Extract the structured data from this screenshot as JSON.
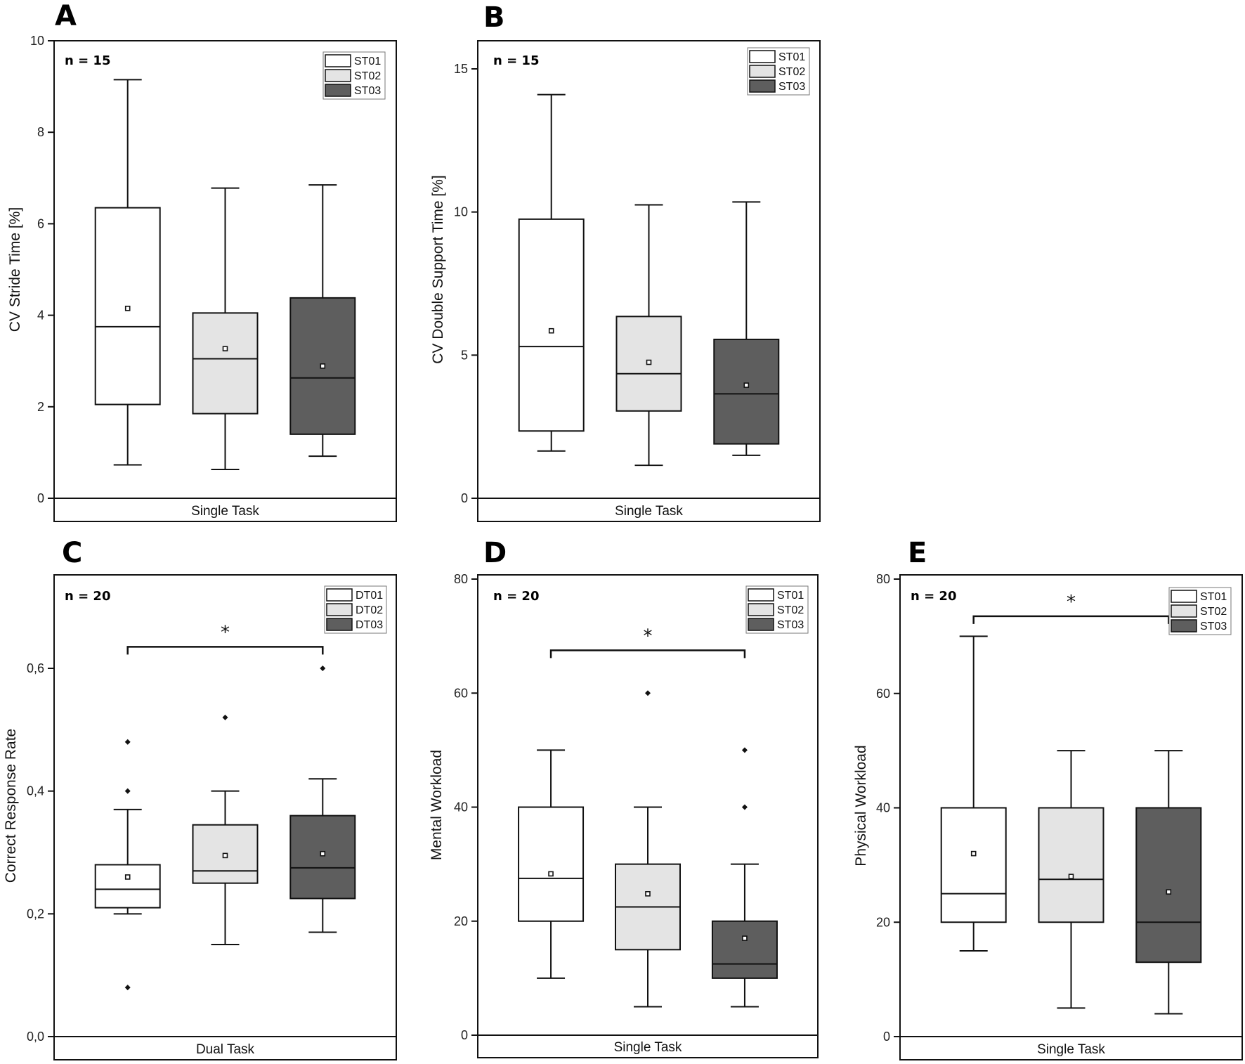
{
  "chart_data": [
    {
      "type": "box",
      "panel": "A",
      "n_label": "n = 15",
      "ylabel": "CV Stride Time [%]",
      "xlabel": "Single Task",
      "ylim": [
        0,
        10
      ],
      "yticks": [
        0,
        2,
        4,
        6,
        8,
        10
      ],
      "ytick_labels": [
        "0",
        "2",
        "4",
        "6",
        "8",
        "10"
      ],
      "legend": [
        "ST01",
        "ST02",
        "ST03"
      ],
      "colors": [
        "#ffffff",
        "#e4e4e4",
        "#5e5e5e"
      ],
      "series": [
        {
          "name": "ST01",
          "whisker_low": 0.73,
          "q1": 2.05,
          "median": 3.75,
          "q3": 6.35,
          "whisker_high": 9.15,
          "mean": 4.15,
          "outliers": []
        },
        {
          "name": "ST02",
          "whisker_low": 0.63,
          "q1": 1.85,
          "median": 3.05,
          "q3": 4.05,
          "whisker_high": 6.78,
          "mean": 3.27,
          "outliers": []
        },
        {
          "name": "ST03",
          "whisker_low": 0.92,
          "q1": 1.4,
          "median": 2.63,
          "q3": 4.38,
          "whisker_high": 6.85,
          "mean": 2.89,
          "outliers": []
        }
      ],
      "significance": null
    },
    {
      "type": "box",
      "panel": "B",
      "n_label": "n = 15",
      "ylabel": "CV Double Support Time [%]",
      "xlabel": "Single Task",
      "ylim": [
        0,
        16
      ],
      "yticks": [
        0,
        5,
        10,
        15
      ],
      "ytick_labels": [
        "0",
        "5",
        "10",
        "15"
      ],
      "legend": [
        "ST01",
        "ST02",
        "ST03"
      ],
      "colors": [
        "#ffffff",
        "#e4e4e4",
        "#5e5e5e"
      ],
      "series": [
        {
          "name": "ST01",
          "whisker_low": 1.65,
          "q1": 2.35,
          "median": 5.3,
          "q3": 9.75,
          "whisker_high": 14.1,
          "mean": 5.85,
          "outliers": []
        },
        {
          "name": "ST02",
          "whisker_low": 1.15,
          "q1": 3.05,
          "median": 4.35,
          "q3": 6.35,
          "whisker_high": 10.25,
          "mean": 4.75,
          "outliers": []
        },
        {
          "name": "ST03",
          "whisker_low": 1.5,
          "q1": 1.9,
          "median": 3.65,
          "q3": 5.55,
          "whisker_high": 10.35,
          "mean": 3.95,
          "outliers": []
        }
      ],
      "significance": null
    },
    {
      "type": "box",
      "panel": "C",
      "n_label": "n = 20",
      "ylabel": "Correct Response Rate",
      "xlabel": "Dual Task",
      "ylim": [
        0,
        0.75
      ],
      "yticks": [
        0,
        0.2,
        0.4,
        0.6
      ],
      "ytick_labels": [
        "0,0",
        "0,2",
        "0,4",
        "0,6"
      ],
      "legend": [
        "DT01",
        "DT02",
        "DT03"
      ],
      "colors": [
        "#ffffff",
        "#e4e4e4",
        "#5e5e5e"
      ],
      "series": [
        {
          "name": "DT01",
          "whisker_low": 0.2,
          "q1": 0.21,
          "median": 0.24,
          "q3": 0.28,
          "whisker_high": 0.37,
          "mean": 0.26,
          "outliers": [
            0.48,
            0.4,
            0.08
          ]
        },
        {
          "name": "DT02",
          "whisker_low": 0.15,
          "q1": 0.25,
          "median": 0.27,
          "q3": 0.345,
          "whisker_high": 0.4,
          "mean": 0.295,
          "outliers": [
            0.52
          ]
        },
        {
          "name": "DT03",
          "whisker_low": 0.17,
          "q1": 0.225,
          "median": 0.275,
          "q3": 0.36,
          "whisker_high": 0.42,
          "mean": 0.298,
          "outliers": [
            0.6
          ]
        }
      ],
      "significance": {
        "from": 0,
        "to": 2,
        "level": 0.635,
        "label": "*"
      }
    },
    {
      "type": "box",
      "panel": "D",
      "n_label": "n = 20",
      "ylabel": "Mental Workload",
      "xlabel": "Single Task",
      "ylim": [
        0,
        80
      ],
      "yticks": [
        0,
        20,
        40,
        60,
        80
      ],
      "ytick_labels": [
        "0",
        "20",
        "40",
        "60",
        "80"
      ],
      "legend": [
        "ST01",
        "ST02",
        "ST03"
      ],
      "colors": [
        "#ffffff",
        "#e4e4e4",
        "#5e5e5e"
      ],
      "series": [
        {
          "name": "ST01",
          "whisker_low": 10,
          "q1": 20,
          "median": 27.5,
          "q3": 40,
          "whisker_high": 50,
          "mean": 28.3,
          "outliers": []
        },
        {
          "name": "ST02",
          "whisker_low": 5,
          "q1": 15,
          "median": 22.5,
          "q3": 30,
          "whisker_high": 40,
          "mean": 24.8,
          "outliers": [
            60
          ]
        },
        {
          "name": "ST03",
          "whisker_low": 5,
          "q1": 10,
          "median": 12.5,
          "q3": 20,
          "whisker_high": 30,
          "mean": 17,
          "outliers": [
            50,
            40
          ]
        }
      ],
      "significance": {
        "from": 0,
        "to": 2,
        "level": 67.5,
        "label": "*"
      }
    },
    {
      "type": "box",
      "panel": "E",
      "n_label": "n = 20",
      "ylabel": "Physical Workload",
      "xlabel": "Single Task",
      "ylim": [
        0,
        80
      ],
      "yticks": [
        0,
        20,
        40,
        60,
        80
      ],
      "ytick_labels": [
        "0",
        "20",
        "40",
        "60",
        "80"
      ],
      "legend": [
        "ST01",
        "ST02",
        "ST03"
      ],
      "colors": [
        "#ffffff",
        "#e4e4e4",
        "#5e5e5e"
      ],
      "series": [
        {
          "name": "ST01",
          "whisker_low": 15,
          "q1": 20,
          "median": 25,
          "q3": 40,
          "whisker_high": 70,
          "mean": 32,
          "outliers": []
        },
        {
          "name": "ST02",
          "whisker_low": 5,
          "q1": 20,
          "median": 27.5,
          "q3": 40,
          "whisker_high": 50,
          "mean": 28,
          "outliers": []
        },
        {
          "name": "ST03",
          "whisker_low": 4,
          "q1": 13,
          "median": 20,
          "q3": 40,
          "whisker_high": 50,
          "mean": 25.3,
          "outliers": []
        }
      ],
      "significance": {
        "from": 0,
        "to": 2,
        "level": 73.5,
        "label": "*"
      }
    }
  ]
}
